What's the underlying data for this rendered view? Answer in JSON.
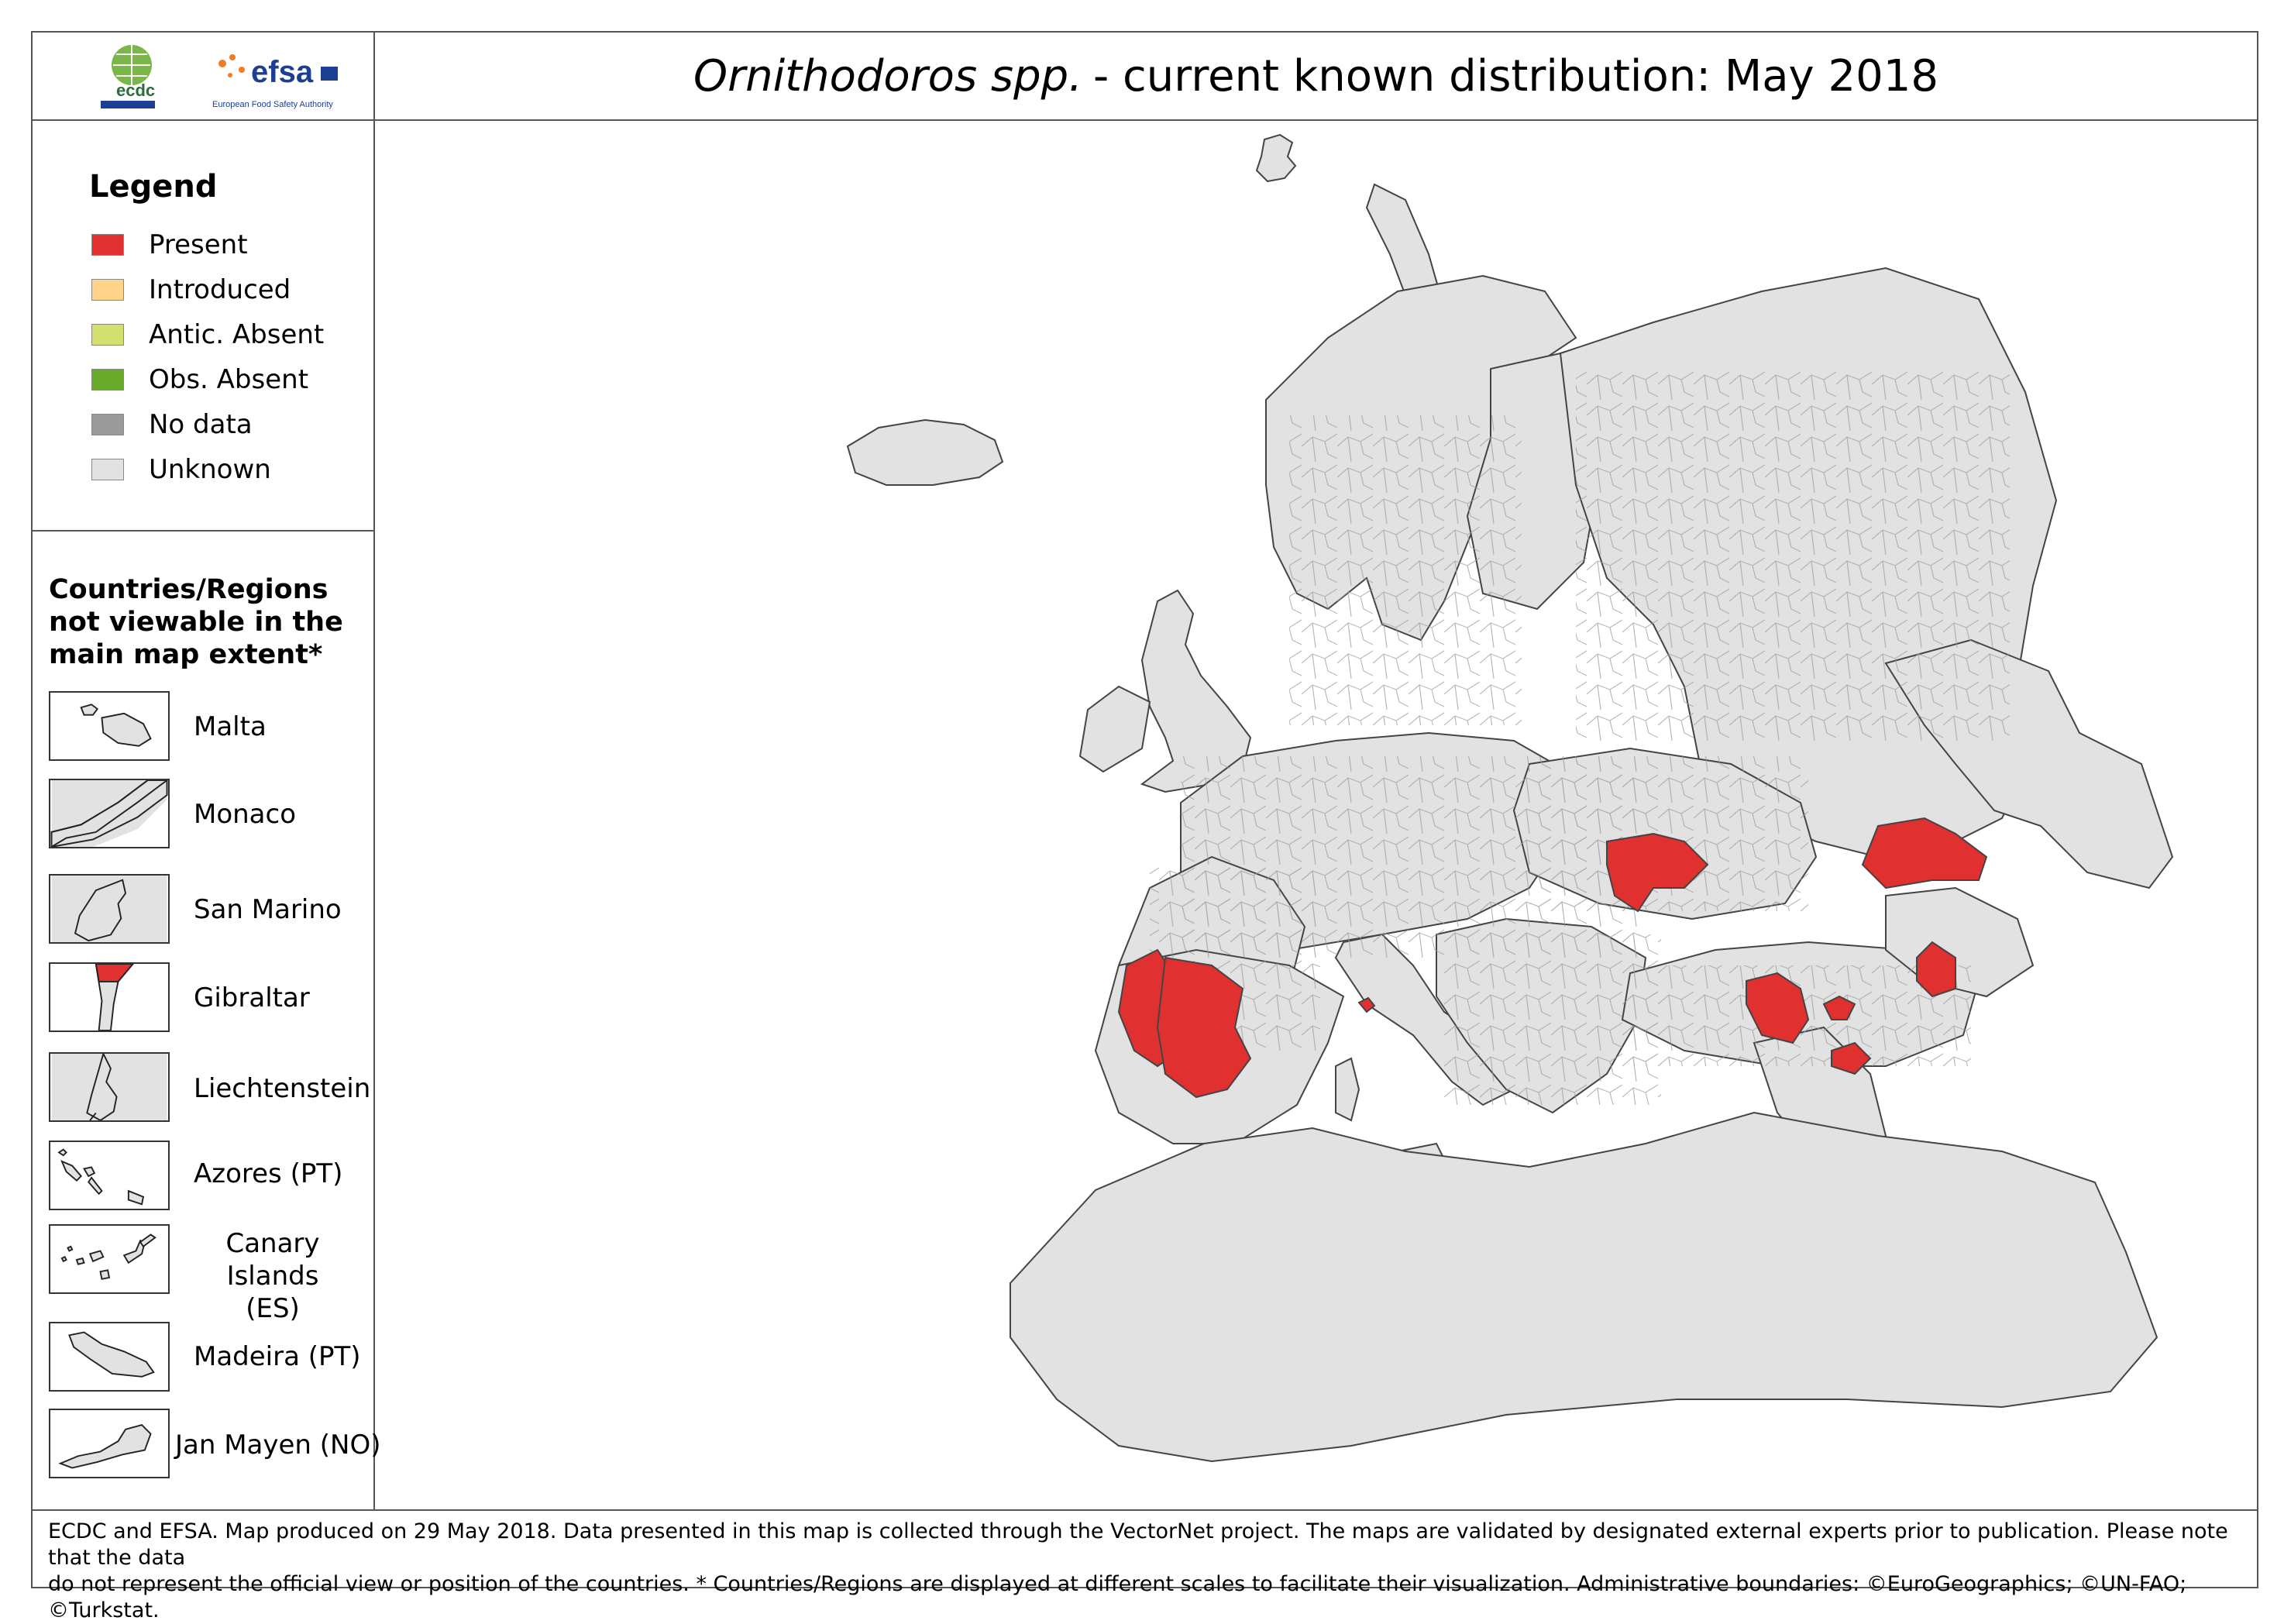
{
  "header": {
    "title_italic": "Ornithodoros spp.",
    "title_rest": "- current known distribution: May 2018",
    "logos": [
      {
        "name": "ecdc-logo",
        "text": "ecdc"
      },
      {
        "name": "efsa-logo",
        "text": "efsa",
        "subtext": "European Food Safety Authority"
      }
    ]
  },
  "legend": {
    "title": "Legend",
    "items": [
      {
        "label": "Present",
        "color": "#e03030"
      },
      {
        "label": "Introduced",
        "color": "#fdd48a"
      },
      {
        "label": "Antic. Absent",
        "color": "#d4e06e"
      },
      {
        "label": "Obs. Absent",
        "color": "#6aaa2a"
      },
      {
        "label": "No data",
        "color": "#9a9a9a"
      },
      {
        "label": "Unknown",
        "color": "#e2e2e2"
      }
    ]
  },
  "insets": {
    "title": "Countries/Regions not viewable in the main map extent*",
    "items": [
      {
        "label": "Malta",
        "status": "Unknown"
      },
      {
        "label": "Monaco",
        "status": "Unknown"
      },
      {
        "label": "San Marino",
        "status": "Unknown"
      },
      {
        "label": "Gibraltar",
        "status": "Present"
      },
      {
        "label": "Liechtenstein",
        "status": "Unknown"
      },
      {
        "label": "Azores (PT)",
        "status": "Unknown"
      },
      {
        "label": "Canary Islands (ES)",
        "status": "Unknown"
      },
      {
        "label": "Madeira (PT)",
        "status": "Unknown"
      },
      {
        "label": "Jan Mayen (NO)",
        "status": "Unknown"
      }
    ]
  },
  "map": {
    "land_color": "#e2e2e2",
    "present_color": "#e03030",
    "water_color": "#ffffff",
    "border_color": "#555555"
  },
  "footer": {
    "line1": "ECDC and EFSA. Map produced on 29 May 2018. Data presented in this map is collected through the VectorNet project. The maps are validated by designated external experts prior to publication. Please note that the data",
    "line2": "do not represent the official view or position of the countries. * Countries/Regions are displayed at different scales to facilitate their visualization. Administrative boundaries: ©EuroGeographics; ©UN-FAO; ©Turkstat."
  }
}
